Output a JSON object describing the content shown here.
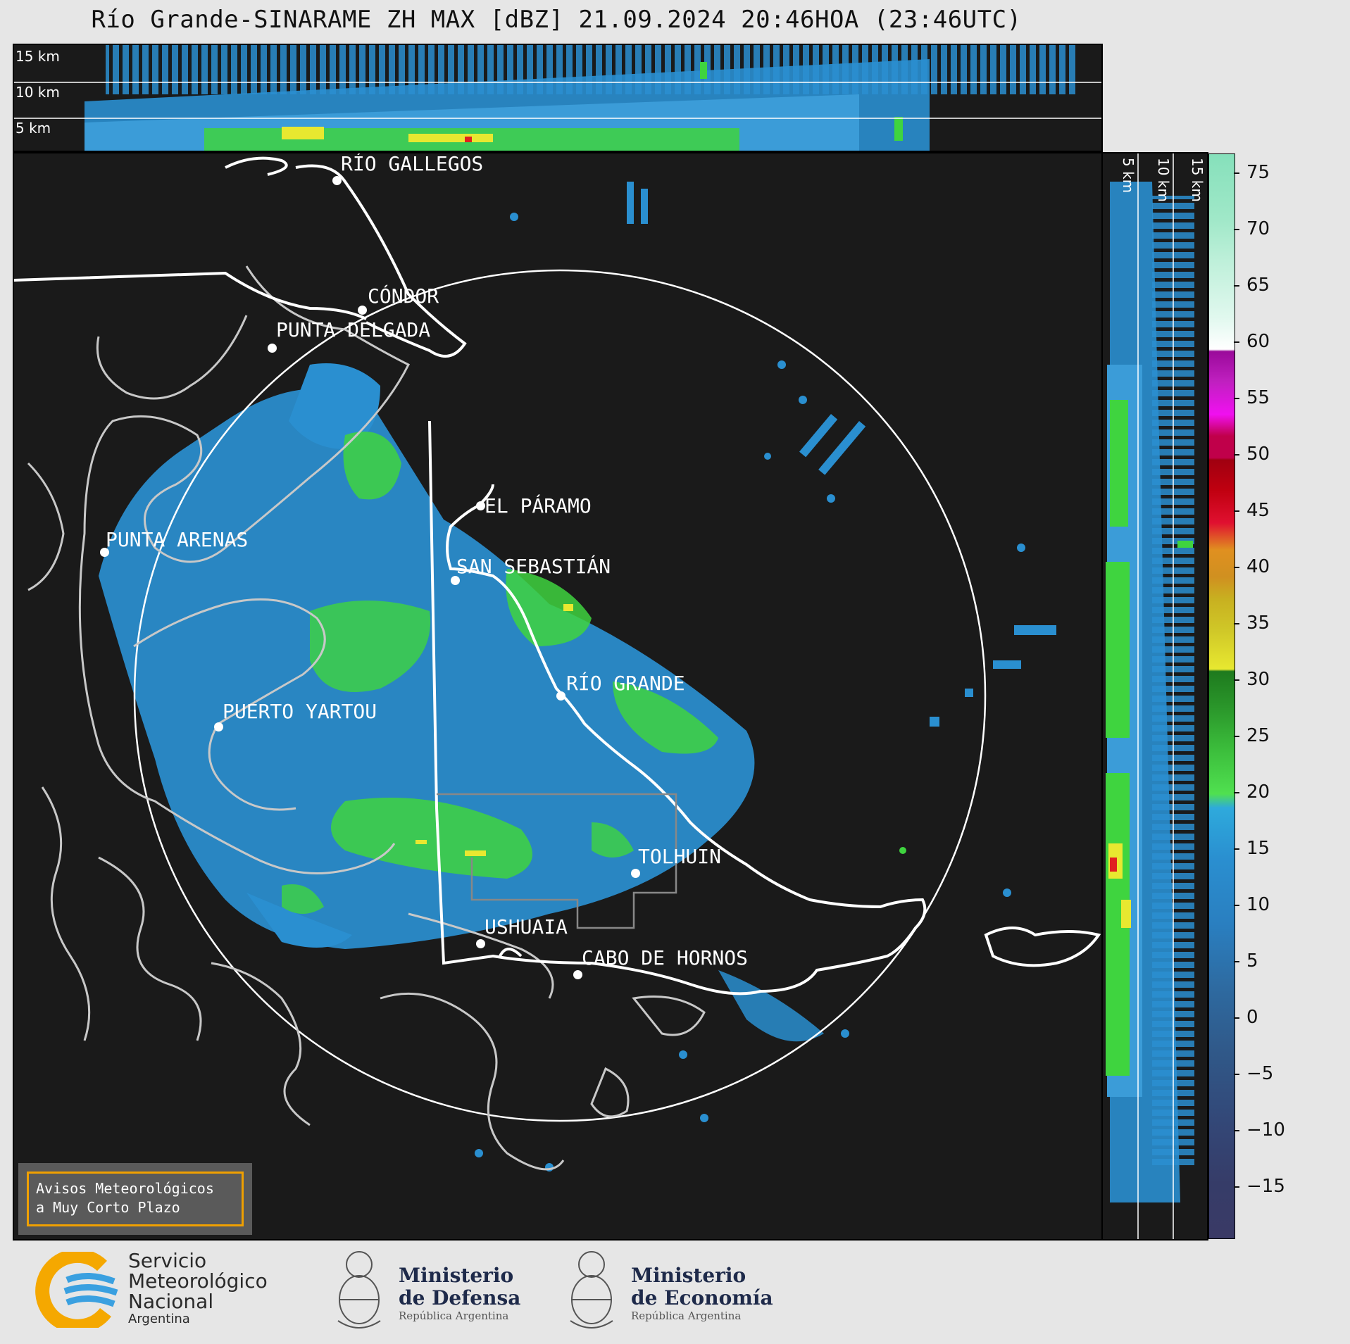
{
  "title": "Río Grande-SINARAME ZH MAX [dBZ] 21.09.2024 20:46HOA (23:46UTC)",
  "height_labels": [
    "15 km",
    "10 km",
    "5 km"
  ],
  "cities": [
    {
      "name": "RÍO GALLEGOS"
    },
    {
      "name": "CÓNDOR"
    },
    {
      "name": "PUNTA DELGADA"
    },
    {
      "name": "EL PÁRAMO"
    },
    {
      "name": "PUNTA ARENAS"
    },
    {
      "name": "SAN SEBASTIÁN"
    },
    {
      "name": "RÍO GRANDE"
    },
    {
      "name": "PUERTO YARTOU"
    },
    {
      "name": "TOLHUIN"
    },
    {
      "name": "USHUAIA"
    },
    {
      "name": "CABO DE HORNOS"
    }
  ],
  "colorbar": {
    "unit": "dBZ",
    "ticks": [
      "75",
      "70",
      "65",
      "60",
      "55",
      "50",
      "45",
      "40",
      "35",
      "30",
      "25",
      "20",
      "15",
      "10",
      "5",
      "0",
      "−5",
      "−10",
      "−15"
    ],
    "range": [
      -20,
      76
    ]
  },
  "warning": {
    "line1": "Avisos Meteorológicos",
    "line2": "a Muy Corto Plazo"
  },
  "footer": {
    "smn": {
      "line1": "Servicio",
      "line2": "Meteorológico",
      "line3": "Nacional",
      "line4": "Argentina"
    },
    "defensa": {
      "line1": "Ministerio",
      "line2": "de Defensa",
      "line3": "República Argentina"
    },
    "economia": {
      "line1": "Ministerio",
      "line2": "de Economía",
      "line3": "República Argentina"
    }
  },
  "colors": {
    "background": "#1a1a1a",
    "echo_blue": "#2a8fd0",
    "echo_green": "#3fd43f",
    "echo_yellow": "#e8e830",
    "echo_red": "#e02020",
    "logo_orange": "#f5a800",
    "logo_blue": "#3aa0e0"
  }
}
